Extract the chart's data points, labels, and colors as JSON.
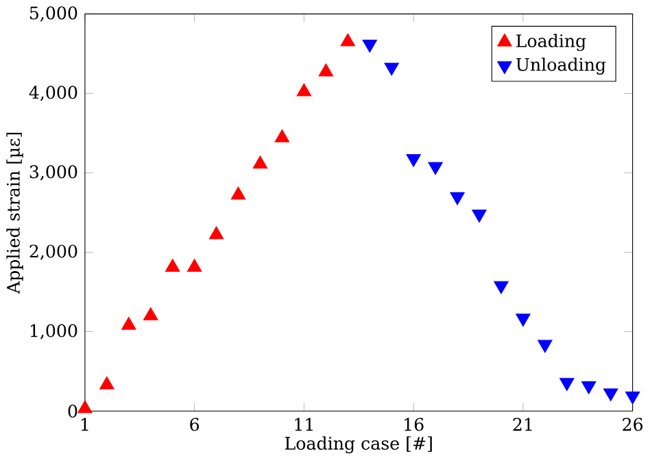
{
  "chart_data": {
    "type": "scatter",
    "xlabel": "Loading case [#]",
    "ylabel": "Applied strain [µε]",
    "xlim": [
      1,
      26
    ],
    "xticks": [
      1,
      6,
      11,
      16,
      21,
      26
    ],
    "ylim": [
      0,
      5000
    ],
    "yticks": [
      {
        "value": 0,
        "label": "0"
      },
      {
        "value": 1000,
        "label": "1,000"
      },
      {
        "value": 2000,
        "label": "2,000"
      },
      {
        "value": 3000,
        "label": "3,000"
      },
      {
        "value": 4000,
        "label": "4,000"
      },
      {
        "value": 5000,
        "label": "5,000"
      }
    ],
    "legend": "top right",
    "series": [
      {
        "name": "Loading",
        "color": "#ff0000",
        "marker": "triangle",
        "x": [
          1,
          2,
          3,
          4,
          5,
          6,
          7,
          8,
          9,
          10,
          11,
          12,
          13
        ],
        "values": [
          30,
          330,
          1080,
          1200,
          1810,
          1810,
          2220,
          2720,
          3110,
          3440,
          4020,
          4270,
          4650
        ]
      },
      {
        "name": "Unloading",
        "color": "#0000ff",
        "marker": "triangle-down",
        "x": [
          14,
          15,
          16,
          17,
          18,
          19,
          20,
          21,
          22,
          23,
          24,
          25,
          26
        ],
        "values": [
          4620,
          4330,
          3180,
          3080,
          2700,
          2480,
          1580,
          1170,
          840,
          360,
          320,
          230,
          190
        ]
      }
    ]
  }
}
